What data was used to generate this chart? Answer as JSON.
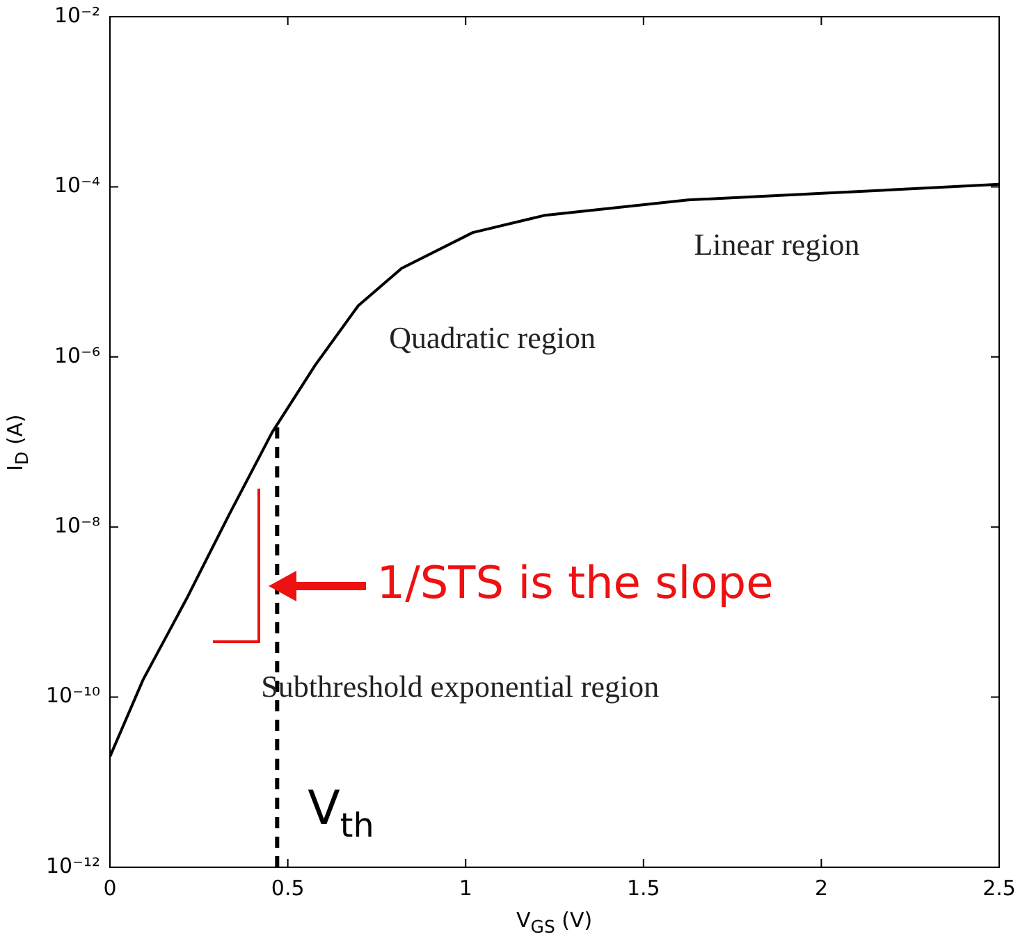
{
  "chart_data": {
    "type": "line",
    "xlabel": "V$_{GS}$ (V)",
    "ylabel": "I$_{D}$ (A)",
    "log": "y",
    "grid": false,
    "legend": false,
    "marker": "none",
    "line_style": "solid",
    "x": [
      0,
      0.093,
      0.214,
      0.335,
      0.456,
      0.577,
      0.698,
      0.82,
      1.02,
      1.22,
      1.625,
      2.03,
      2.5
    ],
    "series": [
      {
        "color": "#000000",
        "values": [
          2e-11,
          1.6e-10,
          1.4e-09,
          1.4e-08,
          1.3e-07,
          8e-07,
          4e-06,
          1.1e-05,
          2.9e-05,
          4.6e-05,
          7e-05,
          8.5e-05,
          0.000107
        ]
      }
    ],
    "xlim": [
      0,
      2.5
    ],
    "xticks": [
      0,
      0.5,
      1,
      1.5,
      2,
      2.5
    ],
    "ylim": [
      1e-12,
      0.01
    ],
    "yticks": [
      {
        "value": 1e-12,
        "label": "10⁻¹²"
      },
      {
        "value": 1e-10,
        "label": "10⁻¹⁰"
      },
      {
        "value": 1e-08,
        "label": "10⁻⁸"
      },
      {
        "value": 1e-06,
        "label": "10⁻⁶"
      },
      {
        "value": 0.0001,
        "label": "10⁻⁴"
      },
      {
        "value": 0.01,
        "label": "10⁻²"
      }
    ],
    "ref_lines": [
      {
        "axis": "x",
        "value": 0.47,
        "label": "V$_{th}$",
        "color": "#000000",
        "line_style": "dashed"
      }
    ],
    "annotations": [
      "Linear region",
      "Quadratic region",
      "Subthreshold exponential region",
      "1/STS is the slope"
    ]
  }
}
